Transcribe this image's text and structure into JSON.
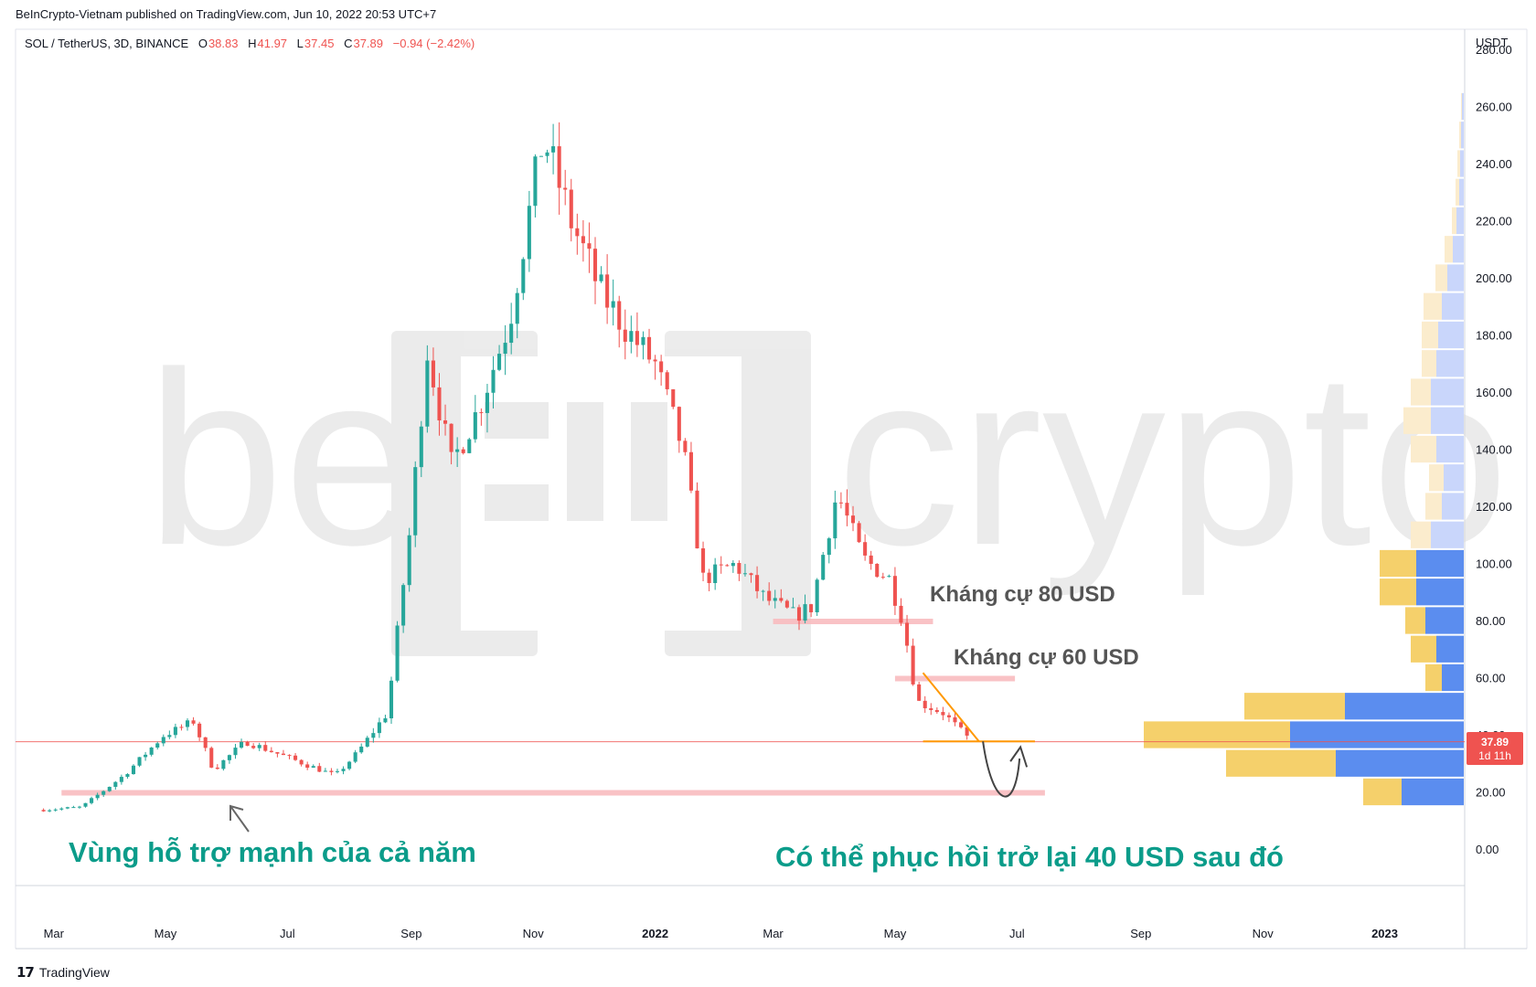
{
  "header": {
    "published_by": "BeInCrypto-Vietnam published on TradingView.com, Jun 10, 2022 20:53 UTC+7",
    "symbol": "SOL / TetherUS, 3D, BINANCE",
    "o_label": "O",
    "o_value": "38.83",
    "h_label": "H",
    "h_value": "41.97",
    "l_label": "L",
    "l_value": "37.45",
    "c_label": "C",
    "c_value": "37.89",
    "change": "−0.94 (−2.42%)"
  },
  "watermark": {
    "left": "be",
    "right": "crypto"
  },
  "price_axis": {
    "currency": "USDT",
    "last_price": "37.89",
    "countdown": "1d 11h"
  },
  "annotations": {
    "resistance_80": "Kháng cự 80 USD",
    "resistance_60": "Kháng cự 60 USD",
    "support_zone": "Vùng hỗ trợ mạnh của cả năm",
    "recovery": "Có thể phục hồi trở lại 40 USD sau đó"
  },
  "footer": {
    "brand": "TradingView"
  },
  "colors": {
    "up": "#26a69a",
    "down": "#ef5350",
    "zone": "#f8bbbf",
    "triangle": "#ff9800",
    "text_green": "#0b9c8a",
    "text_grey": "#555555",
    "vp_up_in": "#f5d06b",
    "vp_down_in": "#5b8def",
    "vp_up_out": "#fbeccd",
    "vp_down_out": "#c9d6fb"
  },
  "chart_data": {
    "type": "candlestick",
    "title": "SOL / TetherUS, 3D, BINANCE",
    "ylabel": "USDT",
    "ylim": [
      -5,
      280
    ],
    "x_ticks": [
      "Mar",
      "May",
      "Jul",
      "Sep",
      "Nov",
      "2022",
      "Mar",
      "May",
      "Jul",
      "Sep",
      "Nov",
      "2023"
    ],
    "y_ticks": [
      "0.00",
      "20.00",
      "40.00",
      "60.00",
      "80.00",
      "100.00",
      "120.00",
      "140.00",
      "160.00",
      "180.00",
      "200.00",
      "220.00",
      "240.00",
      "260.00",
      "280.00"
    ],
    "y_tick_values": [
      0,
      20,
      40,
      60,
      80,
      100,
      120,
      140,
      160,
      180,
      200,
      220,
      240,
      260,
      280
    ],
    "anchors": [
      [
        "2021-03-01",
        14
      ],
      [
        "2021-03-20",
        15
      ],
      [
        "2021-04-10",
        26
      ],
      [
        "2021-04-30",
        40
      ],
      [
        "2021-05-15",
        45
      ],
      [
        "2021-05-25",
        28
      ],
      [
        "2021-06-10",
        38
      ],
      [
        "2021-06-25",
        34
      ],
      [
        "2021-07-10",
        30
      ],
      [
        "2021-07-25",
        26
      ],
      [
        "2021-08-05",
        34
      ],
      [
        "2021-08-20",
        48
      ],
      [
        "2021-08-31",
        110
      ],
      [
        "2021-09-09",
        175
      ],
      [
        "2021-09-21",
        135
      ],
      [
        "2021-10-05",
        155
      ],
      [
        "2021-10-20",
        185
      ],
      [
        "2021-11-06",
        250
      ],
      [
        "2021-11-20",
        220
      ],
      [
        "2021-12-05",
        195
      ],
      [
        "2021-12-20",
        180
      ],
      [
        "2022-01-01",
        170
      ],
      [
        "2022-01-15",
        140
      ],
      [
        "2022-01-25",
        95
      ],
      [
        "2022-02-10",
        100
      ],
      [
        "2022-02-25",
        88
      ],
      [
        "2022-03-12",
        82
      ],
      [
        "2022-03-20",
        85
      ],
      [
        "2022-04-02",
        125
      ],
      [
        "2022-04-15",
        102
      ],
      [
        "2022-04-28",
        95
      ],
      [
        "2022-05-05",
        80
      ],
      [
        "2022-05-12",
        52
      ],
      [
        "2022-05-25",
        48
      ],
      [
        "2022-06-08",
        38
      ]
    ],
    "horizontal_levels": [
      {
        "name": "resistance",
        "value": 80,
        "from": "2022-03-01",
        "to": "2022-05-20"
      },
      {
        "name": "resistance",
        "value": 60,
        "from": "2022-05-01",
        "to": "2022-06-30"
      },
      {
        "name": "support",
        "value": 20,
        "from": "2021-03-10",
        "to": "2022-07-15"
      },
      {
        "name": "current-price",
        "value": 37.89
      }
    ],
    "volume_profile": [
      {
        "price": 260,
        "up": 1,
        "down": 2
      },
      {
        "price": 250,
        "up": 2,
        "down": 3
      },
      {
        "price": 240,
        "up": 3,
        "down": 4
      },
      {
        "price": 230,
        "up": 4,
        "down": 5
      },
      {
        "price": 220,
        "up": 5,
        "down": 8
      },
      {
        "price": 210,
        "up": 9,
        "down": 12
      },
      {
        "price": 200,
        "up": 13,
        "down": 18
      },
      {
        "price": 190,
        "up": 20,
        "down": 24
      },
      {
        "price": 180,
        "up": 18,
        "down": 28
      },
      {
        "price": 170,
        "up": 16,
        "down": 30
      },
      {
        "price": 160,
        "up": 22,
        "down": 36
      },
      {
        "price": 150,
        "up": 30,
        "down": 36
      },
      {
        "price": 140,
        "up": 28,
        "down": 30
      },
      {
        "price": 130,
        "up": 16,
        "down": 22
      },
      {
        "price": 120,
        "up": 18,
        "down": 24
      },
      {
        "price": 110,
        "up": 22,
        "down": 36
      },
      {
        "price": 100,
        "up": 40,
        "down": 52
      },
      {
        "price": 90,
        "up": 40,
        "down": 52
      },
      {
        "price": 80,
        "up": 22,
        "down": 42
      },
      {
        "price": 70,
        "up": 28,
        "down": 30
      },
      {
        "price": 60,
        "up": 18,
        "down": 24
      },
      {
        "price": 50,
        "up": 110,
        "down": 130
      },
      {
        "price": 40,
        "up": 160,
        "down": 190
      },
      {
        "price": 30,
        "up": 120,
        "down": 140
      },
      {
        "price": 20,
        "up": 42,
        "down": 68
      }
    ]
  }
}
